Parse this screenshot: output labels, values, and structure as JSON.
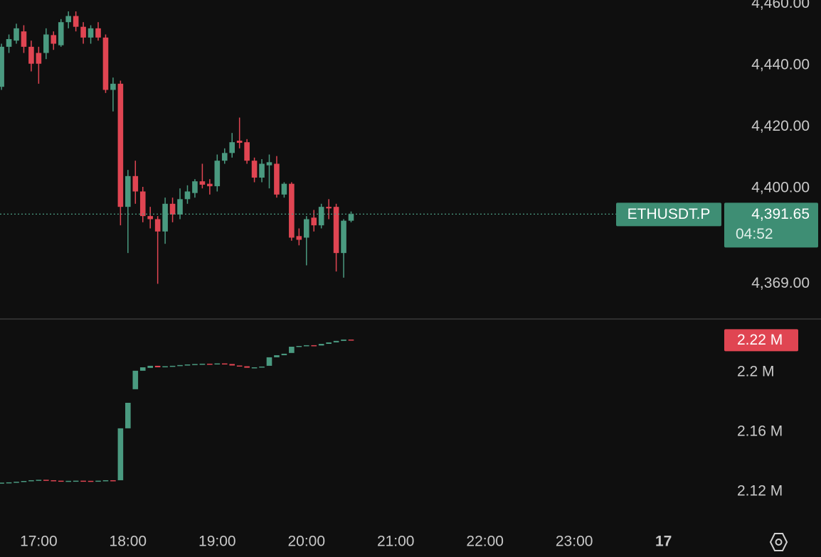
{
  "chart_data": [
    {
      "type": "candlestick",
      "x": [
        "16:35",
        "16:40",
        "16:45",
        "16:50",
        "16:55",
        "17:00",
        "17:05",
        "17:10",
        "17:15",
        "17:20",
        "17:25",
        "17:30",
        "17:35",
        "17:40",
        "17:45",
        "17:50",
        "17:55",
        "18:00",
        "18:05",
        "18:10",
        "18:15",
        "18:20",
        "18:25",
        "18:30",
        "18:35",
        "18:40",
        "18:45",
        "18:50",
        "18:55",
        "19:00",
        "19:05",
        "19:10",
        "19:15",
        "19:20",
        "19:25",
        "19:30",
        "19:35",
        "19:40",
        "19:45",
        "19:50",
        "19:55",
        "20:00",
        "20:05",
        "20:10",
        "20:15",
        "20:20",
        "20:25",
        "20:30"
      ],
      "open": [
        4433,
        4446,
        4448,
        4451,
        4446,
        4444,
        4444,
        4449.8,
        4446.5,
        4454,
        4456,
        4452.5,
        4449,
        4452,
        4449,
        4432,
        4434,
        4394,
        4404,
        4399,
        4391,
        4390,
        4386,
        4395,
        4391.5,
        4396.5,
        4398.5,
        4402.3,
        4401.5,
        4400.7,
        4409,
        4411.5,
        4415.5,
        4415,
        4409,
        4403.5,
        4407.5,
        4408,
        4398,
        4401.5,
        4384.5,
        4384,
        4390.5,
        4388,
        4394,
        4394,
        4379,
        4389.5
      ],
      "high": [
        4447,
        4450,
        4453.5,
        4453,
        4448,
        4446,
        4452,
        4451,
        4455,
        4457.5,
        4457.5,
        4454,
        4453,
        4454,
        4450,
        4436,
        4435,
        4406,
        4409,
        4400.5,
        4394,
        4391,
        4397,
        4397,
        4400,
        4401,
        4403,
        4408,
        4403,
        4411,
        4413,
        4418,
        4423,
        4416,
        4410,
        4409.5,
        4411,
        4410.5,
        4402,
        4402,
        4387,
        4391,
        4393,
        4395,
        4396.5,
        4395,
        4390,
        4392.5
      ],
      "low": [
        4432,
        4444,
        4447,
        4444,
        4438,
        4434,
        4442,
        4445,
        4446,
        4452,
        4451,
        4447,
        4447,
        4448,
        4431,
        4425,
        4388,
        4379,
        4395,
        4389,
        4387,
        4369,
        4382,
        4389,
        4390,
        4395,
        4397,
        4400,
        4398,
        4399,
        4408,
        4410,
        4413,
        4408,
        4402,
        4402,
        4400,
        4397,
        4397,
        4383,
        4381.5,
        4375,
        4386,
        4387,
        4390,
        4373,
        4371,
        4389
      ],
      "close": [
        4446,
        4448.5,
        4452,
        4446,
        4440.5,
        4440.5,
        4450,
        4447,
        4454,
        4456,
        4452.5,
        4449,
        4452,
        4449,
        4432,
        4434,
        4394,
        4404,
        4399,
        4391,
        4390,
        4386,
        4395,
        4391.5,
        4396.5,
        4399,
        4402.3,
        4401.2,
        4400.7,
        4409,
        4411.5,
        4415,
        4414.8,
        4409,
        4403.5,
        4408,
        4408.5,
        4398,
        4401.5,
        4384,
        4383.3,
        4390,
        4388,
        4394,
        4393.5,
        4379,
        4389.5,
        4391.65
      ],
      "up_color": "#4a9a80",
      "down_color": "#e04552",
      "xlim": [
        "16:34",
        "00:37"
      ],
      "xticks": [
        {
          "value": "17:00",
          "label": "17:00"
        },
        {
          "value": "18:00",
          "label": "18:00"
        },
        {
          "value": "19:00",
          "label": "19:00"
        },
        {
          "value": "20:00",
          "label": "20:00"
        },
        {
          "value": "21:00",
          "label": "21:00"
        },
        {
          "value": "22:00",
          "label": "22:00"
        },
        {
          "value": "23:00",
          "label": "23:00"
        },
        {
          "value": "00:00",
          "label": "17"
        }
      ],
      "ylim": [
        4357.8,
        4461.2
      ],
      "yticks": [
        {
          "value": 4460,
          "label": "4,460.00"
        },
        {
          "value": 4440,
          "label": "4,440.00"
        },
        {
          "value": 4420,
          "label": "4,420.00"
        },
        {
          "value": 4400,
          "label": "4,400.00"
        },
        {
          "value": 4369,
          "label": "4,369.00"
        }
      ],
      "symbol": "ETHUSDT.P",
      "last_price": {
        "value": 4391.65,
        "label": "4,391.65"
      },
      "countdown": "04:52"
    },
    {
      "type": "candlestick",
      "open": [
        2.1257,
        2.126,
        2.1262,
        2.1266,
        2.1271,
        2.1276,
        2.1279,
        2.1276,
        2.1273,
        2.1271,
        2.1272,
        2.1273,
        2.1272,
        2.127,
        2.1273,
        2.1276,
        2.1276,
        2.1624,
        2.1886,
        2.201,
        2.2029,
        2.2043,
        2.2033,
        2.204,
        2.2043,
        2.2048,
        2.2052,
        2.2055,
        2.2057,
        2.2055,
        2.2059,
        2.2055,
        2.2045,
        2.204,
        2.203,
        2.2033,
        2.2043,
        2.21,
        2.2114,
        2.2129,
        2.2171,
        2.2176,
        2.2181,
        2.2179,
        2.219,
        2.22,
        2.221,
        2.2219
      ],
      "close": [
        2.126,
        2.1262,
        2.1266,
        2.1271,
        2.1276,
        2.1279,
        2.1276,
        2.1273,
        2.1271,
        2.1272,
        2.1273,
        2.1272,
        2.127,
        2.1273,
        2.1276,
        2.127,
        2.1624,
        2.1795,
        2.201,
        2.2033,
        2.2043,
        2.2033,
        2.204,
        2.2043,
        2.2048,
        2.2052,
        2.2055,
        2.2057,
        2.2055,
        2.2059,
        2.2055,
        2.2045,
        2.204,
        2.203,
        2.2033,
        2.2038,
        2.21,
        2.2114,
        2.2124,
        2.2171,
        2.2176,
        2.2181,
        2.2179,
        2.219,
        2.22,
        2.221,
        2.2219,
        2.2217
      ],
      "up_color": "#4a9a80",
      "down_color": "#e04552",
      "ylim": [
        2.0971,
        2.2352
      ],
      "yticks": [
        {
          "value": 2.2,
          "label": "2.2 M"
        },
        {
          "value": 2.16,
          "label": "2.16 M"
        },
        {
          "value": 2.12,
          "label": "2.12 M"
        }
      ],
      "last_value": {
        "value": 2.2217,
        "label": "2.22 M"
      }
    }
  ]
}
